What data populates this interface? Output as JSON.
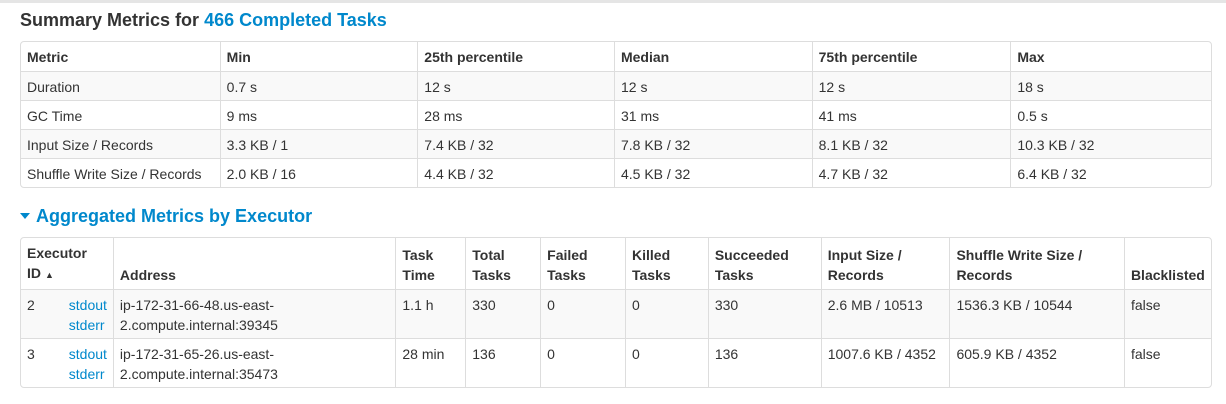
{
  "summary": {
    "title_prefix": "Summary Metrics for",
    "title_link": "466 Completed Tasks",
    "headers": [
      "Metric",
      "Min",
      "25th percentile",
      "Median",
      "75th percentile",
      "Max"
    ],
    "rows": [
      [
        "Duration",
        "0.7 s",
        "12 s",
        "12 s",
        "12 s",
        "18 s"
      ],
      [
        "GC Time",
        "9 ms",
        "28 ms",
        "31 ms",
        "41 ms",
        "0.5 s"
      ],
      [
        "Input Size / Records",
        "3.3 KB / 1",
        "7.4 KB / 32",
        "7.8 KB / 32",
        "8.1 KB / 32",
        "10.3 KB / 32"
      ],
      [
        "Shuffle Write Size / Records",
        "2.0 KB / 16",
        "4.4 KB / 32",
        "4.5 KB / 32",
        "4.7 KB / 32",
        "6.4 KB / 32"
      ]
    ]
  },
  "aggregated": {
    "title": "Aggregated Metrics by Executor",
    "headers": {
      "executor_id_line1": "Executor",
      "executor_id_line2": "ID",
      "sort_indicator": "▲",
      "address": "Address",
      "task_time_line1": "Task",
      "task_time_line2": "Time",
      "total_tasks_line1": "Total",
      "total_tasks_line2": "Tasks",
      "failed_tasks_line1": "Failed",
      "failed_tasks_line2": "Tasks",
      "killed_tasks_line1": "Killed",
      "killed_tasks_line2": "Tasks",
      "succeeded_tasks_line1": "Succeeded",
      "succeeded_tasks_line2": "Tasks",
      "input_line1": "Input Size /",
      "input_line2": "Records",
      "shuffle_line1": "Shuffle Write Size /",
      "shuffle_line2": "Records",
      "blacklisted": "Blacklisted"
    },
    "rows": [
      {
        "id": "2",
        "stdout": "stdout",
        "stderr": "stderr",
        "address_line1": "ip-172-31-66-48.us-east-",
        "address_line2": "2.compute.internal:39345",
        "task_time": "1.1 h",
        "total": "330",
        "failed": "0",
        "killed": "0",
        "succeeded": "330",
        "input": "2.6 MB / 10513",
        "shuffle": "1536.3 KB / 10544",
        "blacklisted": "false"
      },
      {
        "id": "3",
        "stdout": "stdout",
        "stderr": "stderr",
        "address_line1": "ip-172-31-65-26.us-east-",
        "address_line2": "2.compute.internal:35473",
        "task_time": "28 min",
        "total": "136",
        "failed": "0",
        "killed": "0",
        "succeeded": "136",
        "input": "1007.6 KB / 4352",
        "shuffle": "605.9 KB / 4352",
        "blacklisted": "false"
      }
    ]
  },
  "colors": {
    "link": "#0088cc",
    "stripe": "#f9f9f9",
    "border": "#dddddd"
  }
}
